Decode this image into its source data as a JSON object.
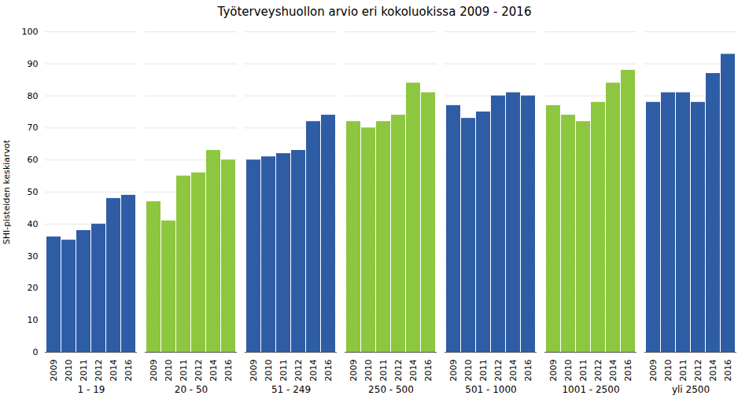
{
  "chart_data": {
    "type": "bar",
    "title": "Työterveyshuollon arvio eri kokoluokissa 2009 - 2016",
    "ylabel": "SHI-pisteiden keskiarvot",
    "categories": [
      "2009",
      "2010",
      "2011",
      "2012",
      "2014",
      "2016"
    ],
    "series": [
      {
        "name": "1 - 19",
        "color": "#2E5DA6",
        "values": [
          36,
          35,
          38,
          40,
          48,
          49
        ]
      },
      {
        "name": "20 - 50",
        "color": "#8DC63F",
        "values": [
          47,
          41,
          55,
          56,
          63,
          60
        ]
      },
      {
        "name": "51 - 249",
        "color": "#2E5DA6",
        "values": [
          60,
          61,
          62,
          63,
          72,
          74
        ]
      },
      {
        "name": "250 - 500",
        "color": "#8DC63F",
        "values": [
          72,
          70,
          72,
          74,
          84,
          81
        ]
      },
      {
        "name": "501 - 1000",
        "color": "#2E5DA6",
        "values": [
          77,
          73,
          75,
          80,
          81,
          80
        ]
      },
      {
        "name": "1001 - 2500",
        "color": "#8DC63F",
        "values": [
          77,
          74,
          72,
          78,
          84,
          88
        ]
      },
      {
        "name": "yli 2500",
        "color": "#2E5DA6",
        "values": [
          78,
          81,
          81,
          78,
          87,
          93
        ]
      }
    ],
    "ylim": [
      0,
      100
    ],
    "yticks": [
      0,
      10,
      20,
      30,
      40,
      50,
      60,
      70,
      80,
      90,
      100
    ],
    "grid": true
  }
}
